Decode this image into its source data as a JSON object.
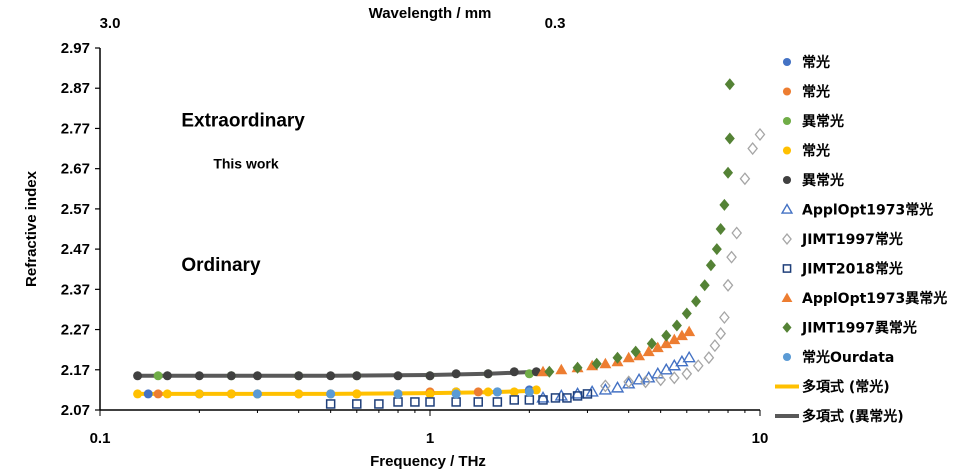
{
  "chart_data": {
    "type": "scatter",
    "title": "",
    "xlabel": "Frequency / THz",
    "ylabel": "Refractive index",
    "top_xlabel": "Wavelength / mm",
    "x_scale": "log",
    "xlim": [
      0.1,
      10
    ],
    "ylim": [
      2.07,
      2.97
    ],
    "x_ticks": [
      {
        "value": 0.1,
        "label": "0.1"
      },
      {
        "value": 1,
        "label": "1"
      },
      {
        "value": 10,
        "label": "10"
      }
    ],
    "y_ticks": [
      "2.07",
      "2.17",
      "2.27",
      "2.37",
      "2.47",
      "2.57",
      "2.67",
      "2.77",
      "2.87",
      "2.97"
    ],
    "top_ticks": [
      {
        "value": 0.1,
        "label": "3.0"
      },
      {
        "value": 1,
        "label": "0.3"
      }
    ],
    "grid": false,
    "legend_position": "right",
    "annotations": [
      {
        "text": "Extraordinary",
        "x": 0.2,
        "y": 2.775,
        "size": "large"
      },
      {
        "text": "This work",
        "x": 0.25,
        "y": 2.67,
        "size": "small"
      },
      {
        "text": "Ordinary",
        "x": 0.2,
        "y": 2.415,
        "size": "large"
      }
    ],
    "series": [
      {
        "name": "常光",
        "marker": "circle",
        "color": "#4472c4",
        "x": [
          0.14,
          0.2,
          0.3,
          0.5,
          0.8,
          1.2,
          1.6,
          2.0
        ],
        "y": [
          2.11,
          2.11,
          2.11,
          2.11,
          2.11,
          2.115,
          2.115,
          2.12
        ]
      },
      {
        "name": "常光",
        "marker": "circle",
        "color": "#ed7d31",
        "x": [
          0.15,
          0.25,
          0.4,
          0.6,
          1.0,
          1.4
        ],
        "y": [
          2.11,
          2.11,
          2.11,
          2.11,
          2.115,
          2.115
        ]
      },
      {
        "name": "異常光",
        "marker": "circle",
        "color": "#70ad47",
        "x": [
          0.15,
          0.25,
          0.4,
          0.6,
          1.0,
          1.5,
          2.0
        ],
        "y": [
          2.155,
          2.155,
          2.155,
          2.155,
          2.155,
          2.16,
          2.16
        ]
      },
      {
        "name": "常光",
        "marker": "circle",
        "color": "#ffc000",
        "x": [
          0.13,
          0.16,
          0.2,
          0.25,
          0.3,
          0.4,
          0.5,
          0.6,
          0.8,
          1.0,
          1.2,
          1.5,
          1.8,
          2.1
        ],
        "y": [
          2.11,
          2.11,
          2.11,
          2.11,
          2.11,
          2.11,
          2.11,
          2.11,
          2.11,
          2.11,
          2.115,
          2.115,
          2.115,
          2.12
        ]
      },
      {
        "name": "異常光",
        "marker": "circle",
        "color": "#404040",
        "x": [
          0.13,
          0.16,
          0.2,
          0.25,
          0.3,
          0.4,
          0.5,
          0.6,
          0.8,
          1.0,
          1.2,
          1.5,
          1.8,
          2.1
        ],
        "y": [
          2.155,
          2.155,
          2.155,
          2.155,
          2.155,
          2.155,
          2.155,
          2.155,
          2.155,
          2.155,
          2.16,
          2.16,
          2.165,
          2.165
        ]
      },
      {
        "name": "ApplOpt1973常光",
        "marker": "triangle-open",
        "color": "#4472c4",
        "x": [
          2.2,
          2.5,
          2.8,
          3.1,
          3.4,
          3.7,
          4.0,
          4.3,
          4.6,
          4.9,
          5.2,
          5.5,
          5.8,
          6.1
        ],
        "y": [
          2.1,
          2.105,
          2.11,
          2.115,
          2.12,
          2.125,
          2.135,
          2.145,
          2.15,
          2.16,
          2.17,
          2.18,
          2.19,
          2.2
        ]
      },
      {
        "name": "JIMT1997常光",
        "marker": "diamond-open",
        "color": "#a6a6a6",
        "x": [
          3.4,
          4.0,
          4.5,
          5.0,
          5.5,
          6.0,
          6.5,
          7.0,
          7.3,
          7.6,
          7.8,
          8.0,
          8.2,
          8.5,
          9.0,
          9.5,
          10.0
        ],
        "y": [
          2.13,
          2.14,
          2.14,
          2.145,
          2.15,
          2.16,
          2.18,
          2.2,
          2.23,
          2.26,
          2.3,
          2.38,
          2.45,
          2.51,
          2.645,
          2.72,
          2.755
        ]
      },
      {
        "name": "JIMT2018常光",
        "marker": "square-open",
        "color": "#1f3f7a",
        "x": [
          0.5,
          0.6,
          0.7,
          0.8,
          0.9,
          1.0,
          1.2,
          1.4,
          1.6,
          1.8,
          2.0,
          2.2,
          2.4,
          2.6,
          2.8,
          3.0
        ],
        "y": [
          2.085,
          2.085,
          2.085,
          2.09,
          2.09,
          2.09,
          2.09,
          2.09,
          2.09,
          2.095,
          2.095,
          2.095,
          2.1,
          2.1,
          2.105,
          2.11
        ]
      },
      {
        "name": "ApplOpt1973異常光",
        "marker": "triangle",
        "color": "#ed7d31",
        "x": [
          2.2,
          2.5,
          2.8,
          3.1,
          3.4,
          3.7,
          4.0,
          4.3,
          4.6,
          4.9,
          5.2,
          5.5,
          5.8,
          6.1
        ],
        "y": [
          2.165,
          2.17,
          2.175,
          2.18,
          2.185,
          2.19,
          2.2,
          2.205,
          2.215,
          2.225,
          2.235,
          2.245,
          2.255,
          2.265
        ]
      },
      {
        "name": "JIMT1997異常光",
        "marker": "diamond",
        "color": "#548235",
        "x": [
          2.3,
          2.8,
          3.2,
          3.7,
          4.2,
          4.7,
          5.2,
          5.6,
          6.0,
          6.4,
          6.8,
          7.1,
          7.4,
          7.6,
          7.8,
          8.0,
          8.1
        ],
        "y": [
          2.165,
          2.175,
          2.185,
          2.2,
          2.215,
          2.235,
          2.255,
          2.28,
          2.31,
          2.34,
          2.38,
          2.43,
          2.47,
          2.52,
          2.58,
          2.66,
          2.745
        ]
      },
      {
        "name": "常光Ourdata",
        "marker": "circle",
        "color": "#5b9bd5",
        "x": [
          0.3,
          0.5,
          0.8,
          1.2,
          1.6,
          2.0
        ],
        "y": [
          2.11,
          2.11,
          2.11,
          2.11,
          2.115,
          2.115
        ]
      },
      {
        "name": "多項式 (常光)",
        "marker": "line",
        "color": "#ffc000",
        "x": [
          0.13,
          0.5,
          1.0,
          1.5,
          2.1
        ],
        "y": [
          2.11,
          2.11,
          2.112,
          2.114,
          2.118
        ]
      },
      {
        "name": "多項式 (異常光)",
        "marker": "line",
        "color": "#595959",
        "x": [
          0.13,
          0.5,
          1.0,
          1.5,
          2.1
        ],
        "y": [
          2.155,
          2.155,
          2.157,
          2.16,
          2.165
        ]
      }
    ],
    "extra_points": [
      {
        "series": "JIMT1997異常光",
        "x": 8.1,
        "y": 2.88
      }
    ]
  }
}
